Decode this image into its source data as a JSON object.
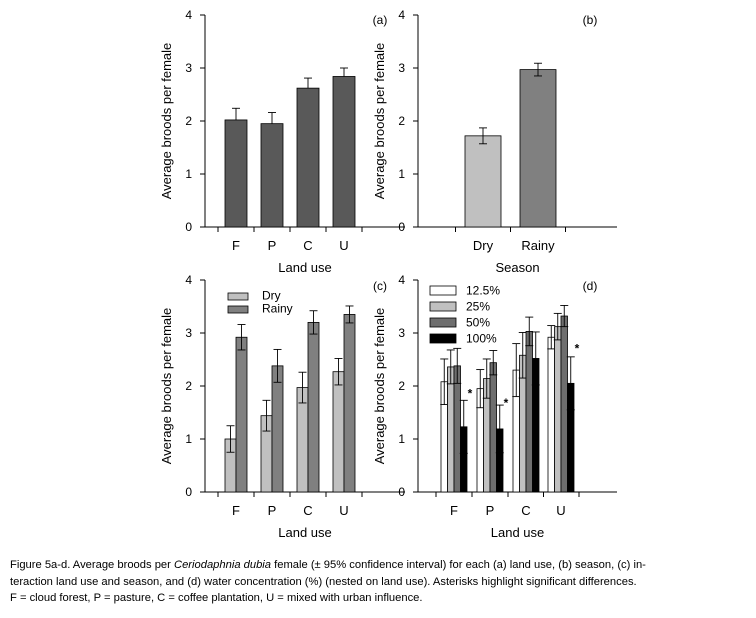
{
  "chart_data": [
    {
      "id": "a",
      "panel_label": "(a)",
      "type": "bar",
      "title": "",
      "xlabel": "Land use",
      "ylabel": "Average broods per female",
      "ylim": [
        0,
        4
      ],
      "yticks": [
        "0",
        "1",
        "2",
        "3",
        "4"
      ],
      "categories": [
        "F",
        "P",
        "C",
        "U"
      ],
      "series": [
        {
          "name": "",
          "color": "#595959",
          "values": [
            2.02,
            1.95,
            2.62,
            2.84
          ],
          "err_plus": [
            0.22,
            0.21,
            0.19,
            0.16
          ]
        }
      ],
      "legend": []
    },
    {
      "id": "b",
      "panel_label": "(b)",
      "type": "bar",
      "title": "",
      "xlabel": "Season",
      "ylabel": "Average broods per female",
      "ylim": [
        0,
        4
      ],
      "yticks": [
        "0",
        "1",
        "2",
        "3",
        "4"
      ],
      "categories": [
        "Dry",
        "Rainy"
      ],
      "series": [
        {
          "name": "",
          "colors": [
            "#c0c0c0",
            "#808080"
          ],
          "values": [
            1.72,
            2.97
          ],
          "err_plus": [
            0.15,
            0.12
          ],
          "err_minus": [
            0.15,
            0.12
          ]
        }
      ],
      "legend": []
    },
    {
      "id": "c",
      "panel_label": "(c)",
      "type": "bar",
      "title": "",
      "xlabel": "Land use",
      "ylabel": "Average broods per female",
      "ylim": [
        0,
        4
      ],
      "yticks": [
        "0",
        "1",
        "2",
        "3",
        "4"
      ],
      "categories": [
        "F",
        "P",
        "C",
        "U"
      ],
      "series": [
        {
          "name": "Dry",
          "color": "#c0c0c0",
          "values": [
            1.0,
            1.44,
            1.97,
            2.27
          ],
          "err_plus": [
            0.25,
            0.29,
            0.29,
            0.25
          ],
          "err_minus": [
            0.25,
            0.29,
            0.29,
            0.25
          ]
        },
        {
          "name": "Rainy",
          "color": "#808080",
          "values": [
            2.92,
            2.38,
            3.2,
            3.35
          ],
          "err_plus": [
            0.24,
            0.31,
            0.22,
            0.16
          ],
          "err_minus": [
            0.24,
            0.31,
            0.22,
            0.16
          ]
        }
      ],
      "legend": [
        "Dry",
        "Rainy"
      ],
      "legend_position": "top-left"
    },
    {
      "id": "d",
      "panel_label": "(d)",
      "type": "bar",
      "title": "",
      "xlabel": "Land use",
      "ylabel": "Average broods per female",
      "ylim": [
        0,
        4
      ],
      "yticks": [
        "0",
        "1",
        "2",
        "3",
        "4"
      ],
      "categories": [
        "F",
        "P",
        "C",
        "U"
      ],
      "series": [
        {
          "name": "12.5%",
          "color": "#ffffff",
          "values": [
            2.08,
            1.95,
            2.3,
            2.92
          ],
          "err_plus": [
            0.43,
            0.36,
            0.5,
            0.22
          ],
          "err_minus": [
            0.43,
            0.36,
            0.5,
            0.22
          ]
        },
        {
          "name": "25%",
          "color": "#c0c0c0",
          "values": [
            2.36,
            2.14,
            2.58,
            3.12
          ],
          "err_plus": [
            0.32,
            0.37,
            0.43,
            0.25
          ],
          "err_minus": [
            0.32,
            0.37,
            0.43,
            0.25
          ]
        },
        {
          "name": "50%",
          "color": "#6e6e6e",
          "values": [
            2.38,
            2.44,
            3.03,
            3.32
          ],
          "err_plus": [
            0.33,
            0.23,
            0.27,
            0.2
          ],
          "err_minus": [
            0.33,
            0.23,
            0.27,
            0.2
          ]
        },
        {
          "name": "100%",
          "color": "#000000",
          "values": [
            1.23,
            1.19,
            2.52,
            2.05
          ],
          "err_plus": [
            0.5,
            0.45,
            0.5,
            0.5
          ],
          "err_minus": [
            0.5,
            0.45,
            0.5,
            0.5
          ]
        }
      ],
      "legend": [
        "12.5%",
        "25%",
        "50%",
        "100%"
      ],
      "legend_position": "top-left",
      "annotations": [
        {
          "text": "*",
          "category": "F",
          "value": 1.9
        },
        {
          "text": "*",
          "category": "P",
          "value": 1.72
        },
        {
          "text": "*",
          "category": "U",
          "value": 2.75
        }
      ]
    }
  ],
  "caption": {
    "prefix": "Figure 5a-d. Average broods per ",
    "species": "Ceriodaphnia dubia",
    "line1_rest": " female (± 95% confidence interval) for each (a) land use, (b) season, (c) in-",
    "line2": "teraction land use and season, and (d) water concentration (%) (nested on land use). Asterisks highlight significant differences.",
    "line3": "F = cloud forest, P = pasture, C = coffee plantation, U = mixed with urban influence."
  }
}
